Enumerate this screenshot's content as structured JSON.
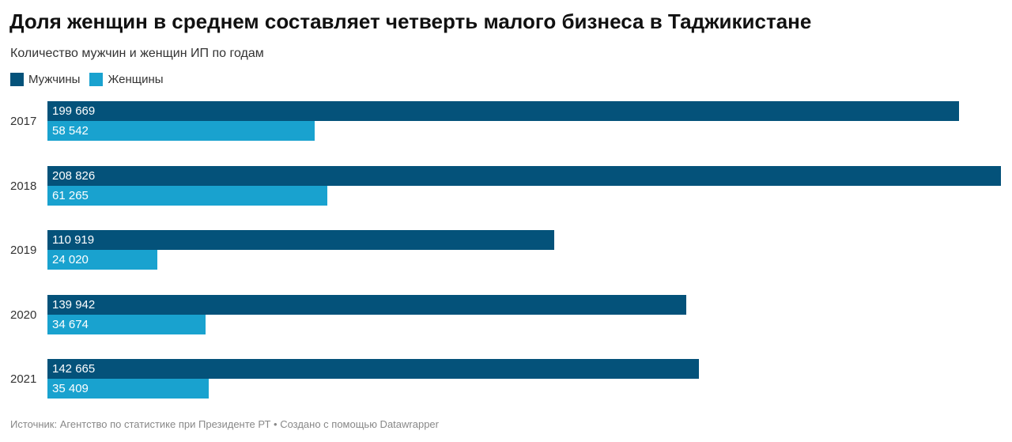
{
  "chart_data": {
    "type": "bar",
    "title": "Доля женщин в среднем составляет четверть малого бизнеса в Таджикистане",
    "subtitle": "Количество мужчин и женщин ИП по годам",
    "categories": [
      "2017",
      "2018",
      "2019",
      "2020",
      "2021"
    ],
    "series": [
      {
        "name": "Мужчины",
        "color": "#04527a",
        "values": [
          199669,
          208826,
          110919,
          139942,
          142665
        ],
        "labels": [
          "199 669",
          "208 826",
          "110 919",
          "139 942",
          "142 665"
        ]
      },
      {
        "name": "Женщины",
        "color": "#19a2cf",
        "values": [
          58542,
          61265,
          24020,
          34674,
          35409
        ],
        "labels": [
          "58 542",
          "61 265",
          "24 020",
          "34 674",
          "35 409"
        ]
      }
    ],
    "xlim": [
      0,
      208826
    ],
    "legend": "top-left",
    "source": "Источник: Агентство по статистике при Президенте РТ • Создано с помощью Datawrapper"
  }
}
